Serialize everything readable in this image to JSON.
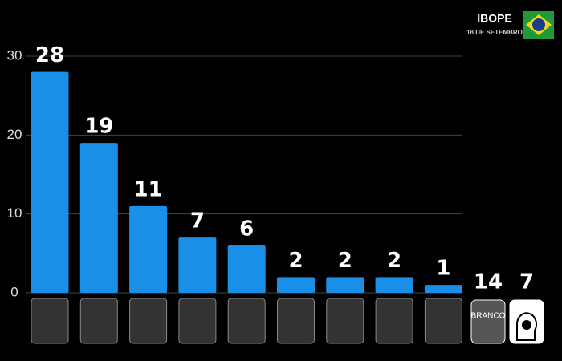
{
  "chart_data": {
    "type": "bar",
    "title": "IBOPE",
    "subtitle": "18 DE SETEMBRO",
    "categories": [
      null,
      null,
      null,
      null,
      null,
      null,
      null,
      null,
      null
    ],
    "values": [
      28,
      19,
      11,
      7,
      6,
      2,
      2,
      2,
      1
    ],
    "color": "#1a8fe8",
    "ylim": [
      0,
      30
    ],
    "yticks": [
      0,
      10,
      20,
      30
    ],
    "grid": true,
    "others": [
      {
        "label": "BRANCO",
        "value": 14
      },
      {
        "label": null,
        "value": 7
      }
    ]
  }
}
